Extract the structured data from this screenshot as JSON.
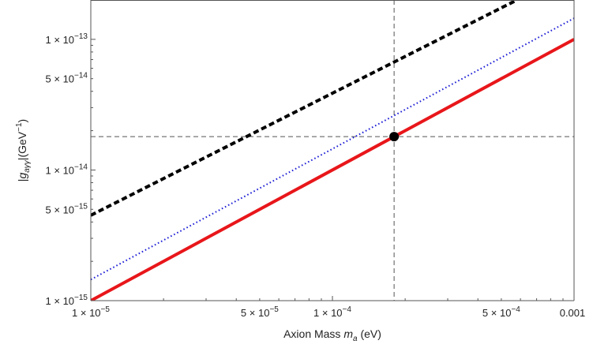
{
  "chart_data": {
    "type": "line",
    "title": "",
    "xlabel": "Axion Mass m_a (eV)",
    "xlabel_parts": {
      "pre": "Axion Mass ",
      "sym": "m",
      "sub": "a",
      "post": " (eV)"
    },
    "ylabel": "|g_aγγ|(GeV^-1)",
    "ylabel_parts": {
      "pre": "|",
      "sym": "g",
      "sub": "aγγ",
      "mid": "|(GeV",
      "sup": "−1",
      "post": ")"
    },
    "xscale": "log",
    "yscale": "log",
    "xlim": [
      1e-05,
      0.001
    ],
    "ylim": [
      1e-15,
      2e-13
    ],
    "grid": false,
    "x_ticks": [
      {
        "value": 1e-05,
        "mant": "1.",
        "exp": "−5"
      },
      {
        "value": 5e-05,
        "mant": "5.",
        "exp": "−5"
      },
      {
        "value": 0.0001,
        "mant": "1.",
        "exp": "−4"
      },
      {
        "value": 0.0005,
        "mant": "5.",
        "exp": "−4"
      },
      {
        "value": 0.001,
        "plain": "0.001"
      }
    ],
    "y_ticks": [
      {
        "value": 1e-15,
        "mant": "1.",
        "exp": "−15"
      },
      {
        "value": 5e-15,
        "mant": "5.",
        "exp": "−15"
      },
      {
        "value": 1e-14,
        "mant": "1.",
        "exp": "−14"
      },
      {
        "value": 5e-14,
        "mant": "5.",
        "exp": "−14"
      },
      {
        "value": 1e-13,
        "mant": "1.",
        "exp": "−13"
      }
    ],
    "series": [
      {
        "style": "dashed",
        "color": "#000000",
        "x": [
          1e-05,
          0.00058
        ],
        "y": [
          4.5e-15,
          2e-13
        ]
      },
      {
        "style": "dotted",
        "color": "#1f1fd6",
        "x": [
          1e-05,
          0.001
        ],
        "y": [
          1.45e-15,
          1.45e-13
        ]
      },
      {
        "style": "solid",
        "color": "#e8161a",
        "x": [
          1e-05,
          0.001
        ],
        "y": [
          1e-15,
          1e-13
        ]
      }
    ],
    "reference_lines": {
      "x": 0.00018,
      "y": 1.8e-14,
      "style": "dashed",
      "color": "#555555"
    },
    "marker": {
      "x": 0.00018,
      "y": 1.8e-14,
      "color": "#000000"
    }
  }
}
